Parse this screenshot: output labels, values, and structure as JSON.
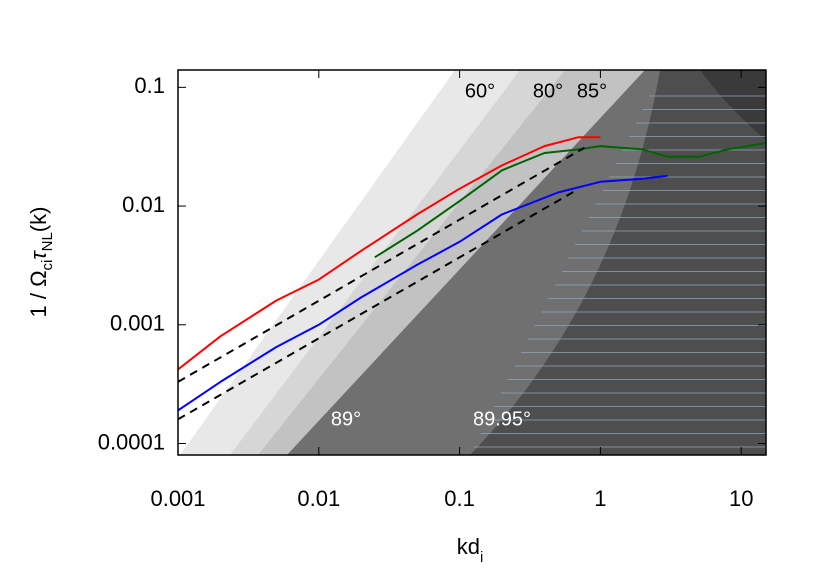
{
  "chart_data": {
    "type": "line",
    "x_label": [
      "kd",
      "i"
    ],
    "y_label": [
      "1 / Ω",
      "ci",
      "τ",
      "NL",
      "(k)"
    ],
    "xlog": true,
    "ylog": true,
    "xlim": [
      0.001,
      15
    ],
    "ylim": [
      8e-05,
      0.14
    ],
    "xticks": [
      0.001,
      0.01,
      0.1,
      1,
      10
    ],
    "yticks": [
      0.0001,
      0.001,
      0.01,
      0.1
    ],
    "annotations": [
      "60°",
      "80°",
      "85°",
      "89°",
      "89.95°"
    ],
    "series": [
      {
        "color": "#ff0000",
        "x": [
          0.001,
          0.002,
          0.005,
          0.01,
          0.02,
          0.05,
          0.1,
          0.2,
          0.4,
          0.7,
          1
        ],
        "values": [
          0.00042,
          0.0008,
          0.0016,
          0.0024,
          0.0042,
          0.0085,
          0.014,
          0.022,
          0.032,
          0.038,
          0.038
        ]
      },
      {
        "color": "#006400",
        "x": [
          0.025,
          0.05,
          0.1,
          0.2,
          0.4,
          0.7,
          1,
          2,
          3,
          5,
          8,
          15
        ],
        "values": [
          0.0037,
          0.0062,
          0.011,
          0.02,
          0.028,
          0.03,
          0.032,
          0.03,
          0.026,
          0.026,
          0.03,
          0.034
        ]
      },
      {
        "color": "#0000ff",
        "x": [
          0.001,
          0.002,
          0.005,
          0.01,
          0.02,
          0.05,
          0.1,
          0.2,
          0.5,
          1,
          2,
          3
        ],
        "values": [
          0.00019,
          0.00033,
          0.00065,
          0.001,
          0.0017,
          0.0032,
          0.005,
          0.0085,
          0.013,
          0.016,
          0.017,
          0.018
        ]
      },
      {
        "color": "#000000",
        "dash": true,
        "x": [
          0.001,
          0.77
        ],
        "values": [
          0.00033,
          0.031
        ]
      },
      {
        "color": "#000000",
        "dash": true,
        "x": [
          0.001,
          0.66
        ],
        "values": [
          0.00016,
          0.0134
        ]
      }
    ]
  }
}
